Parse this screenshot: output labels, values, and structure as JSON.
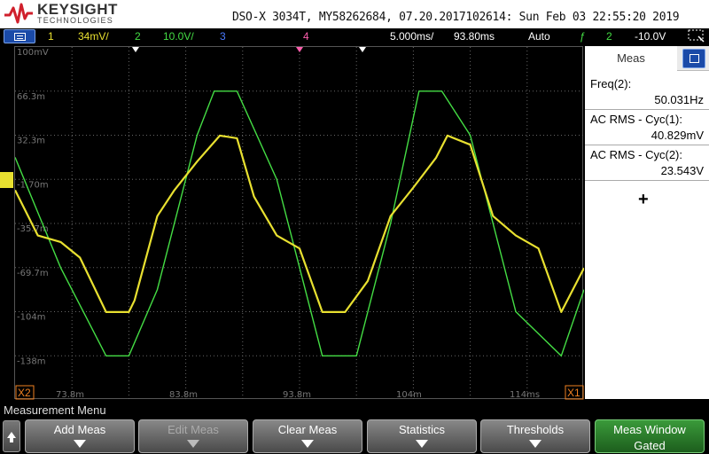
{
  "header": {
    "brand_name": "KEYSIGHT",
    "brand_sub": "TECHNOLOGIES",
    "device_line": "DSO-X 3034T, MY58262684, 07.20.2017102614: Sun Feb 03 22:55:20 2019"
  },
  "status": {
    "ch1_num": "1",
    "ch1_scale": "34mV/",
    "ch2_num": "2",
    "ch2_scale": "10.0V/",
    "ch3_num": "3",
    "ch4_num": "4",
    "timebase": "5.000ms/",
    "delay": "93.80ms",
    "trigger_mode": "Auto",
    "trigger_source": "2",
    "trigger_level": "-10.0V",
    "colors": {
      "ch1": "#e8e030",
      "ch2": "#44dd44",
      "ch3": "#4a7aff",
      "ch4": "#ff5fae"
    }
  },
  "screen": {
    "y_labels": [
      "100mV",
      "66.3m",
      "32.3m",
      "-1.70m",
      "-35.7m",
      "-69.7m",
      "-104m",
      "-138m"
    ],
    "x_labels": [
      "73.8m",
      "83.8m",
      "93.8m",
      "104m",
      "114ms"
    ],
    "cursor_x1": "X1",
    "cursor_x2": "X2",
    "ch1_marker": "1",
    "ch2_marker": "2",
    "trigger_marker": "T"
  },
  "meas": {
    "tab": "Meas",
    "items": [
      {
        "label": "Freq(2):",
        "value": "50.031Hz"
      },
      {
        "label": "AC RMS - Cyc(1):",
        "value": "40.829mV"
      },
      {
        "label": "AC RMS - Cyc(2):",
        "value": "23.543V"
      }
    ],
    "add": "+"
  },
  "menu": {
    "title": "Measurement Menu",
    "buttons": [
      {
        "label": "Add Meas",
        "enabled": true
      },
      {
        "label": "Edit Meas",
        "enabled": false
      },
      {
        "label": "Clear Meas",
        "enabled": true
      },
      {
        "label": "Statistics",
        "enabled": true
      },
      {
        "label": "Thresholds",
        "enabled": true
      }
    ],
    "window_label": "Meas Window",
    "window_value": "Gated"
  },
  "chart_data": {
    "type": "line",
    "xlabel": "",
    "ylabel": "",
    "x_ticks": [
      "73.8m",
      "83.8m",
      "93.8m",
      "104m",
      "114ms"
    ],
    "y_ticks": [
      "100mV",
      "66.3m",
      "32.3m",
      "-1.70m",
      "-35.7m",
      "-69.7m",
      "-104m",
      "-138m"
    ],
    "series": [
      {
        "name": "1",
        "color": "#e8e030",
        "x_ms": [
          68.8,
          70.8,
          72.8,
          74.5,
          76.8,
          78.8,
          79.3,
          81.3,
          82.8,
          84.8,
          86.8,
          88.3,
          89.8,
          91.8,
          93.8,
          95.8,
          97.8,
          99.8,
          101.8,
          103.8,
          105.8,
          106.8,
          108.8,
          110.8,
          112.8,
          114.8,
          116.8,
          118.8
        ],
        "y_mV": [
          -10,
          -45,
          -50,
          -62,
          -104,
          -104,
          -95,
          -30,
          -10,
          12,
          32,
          30,
          -15,
          -45,
          -55,
          -104,
          -104,
          -80,
          -30,
          -8,
          15,
          32,
          25,
          -30,
          -45,
          -55,
          -104,
          -70
        ]
      },
      {
        "name": "2",
        "color": "#44dd44",
        "x_ms": [
          68.8,
          72.8,
          76.8,
          78.8,
          81.3,
          84.8,
          86.3,
          88.3,
          91.8,
          95.8,
          98.8,
          101.8,
          104.3,
          106.3,
          108.8,
          112.8,
          116.8,
          118.8
        ],
        "y_V": [
          15,
          -10,
          -30,
          -30,
          -15,
          20,
          30,
          30,
          10,
          -30,
          -30,
          0,
          30,
          30,
          20,
          -20,
          -30,
          -15
        ]
      }
    ]
  }
}
